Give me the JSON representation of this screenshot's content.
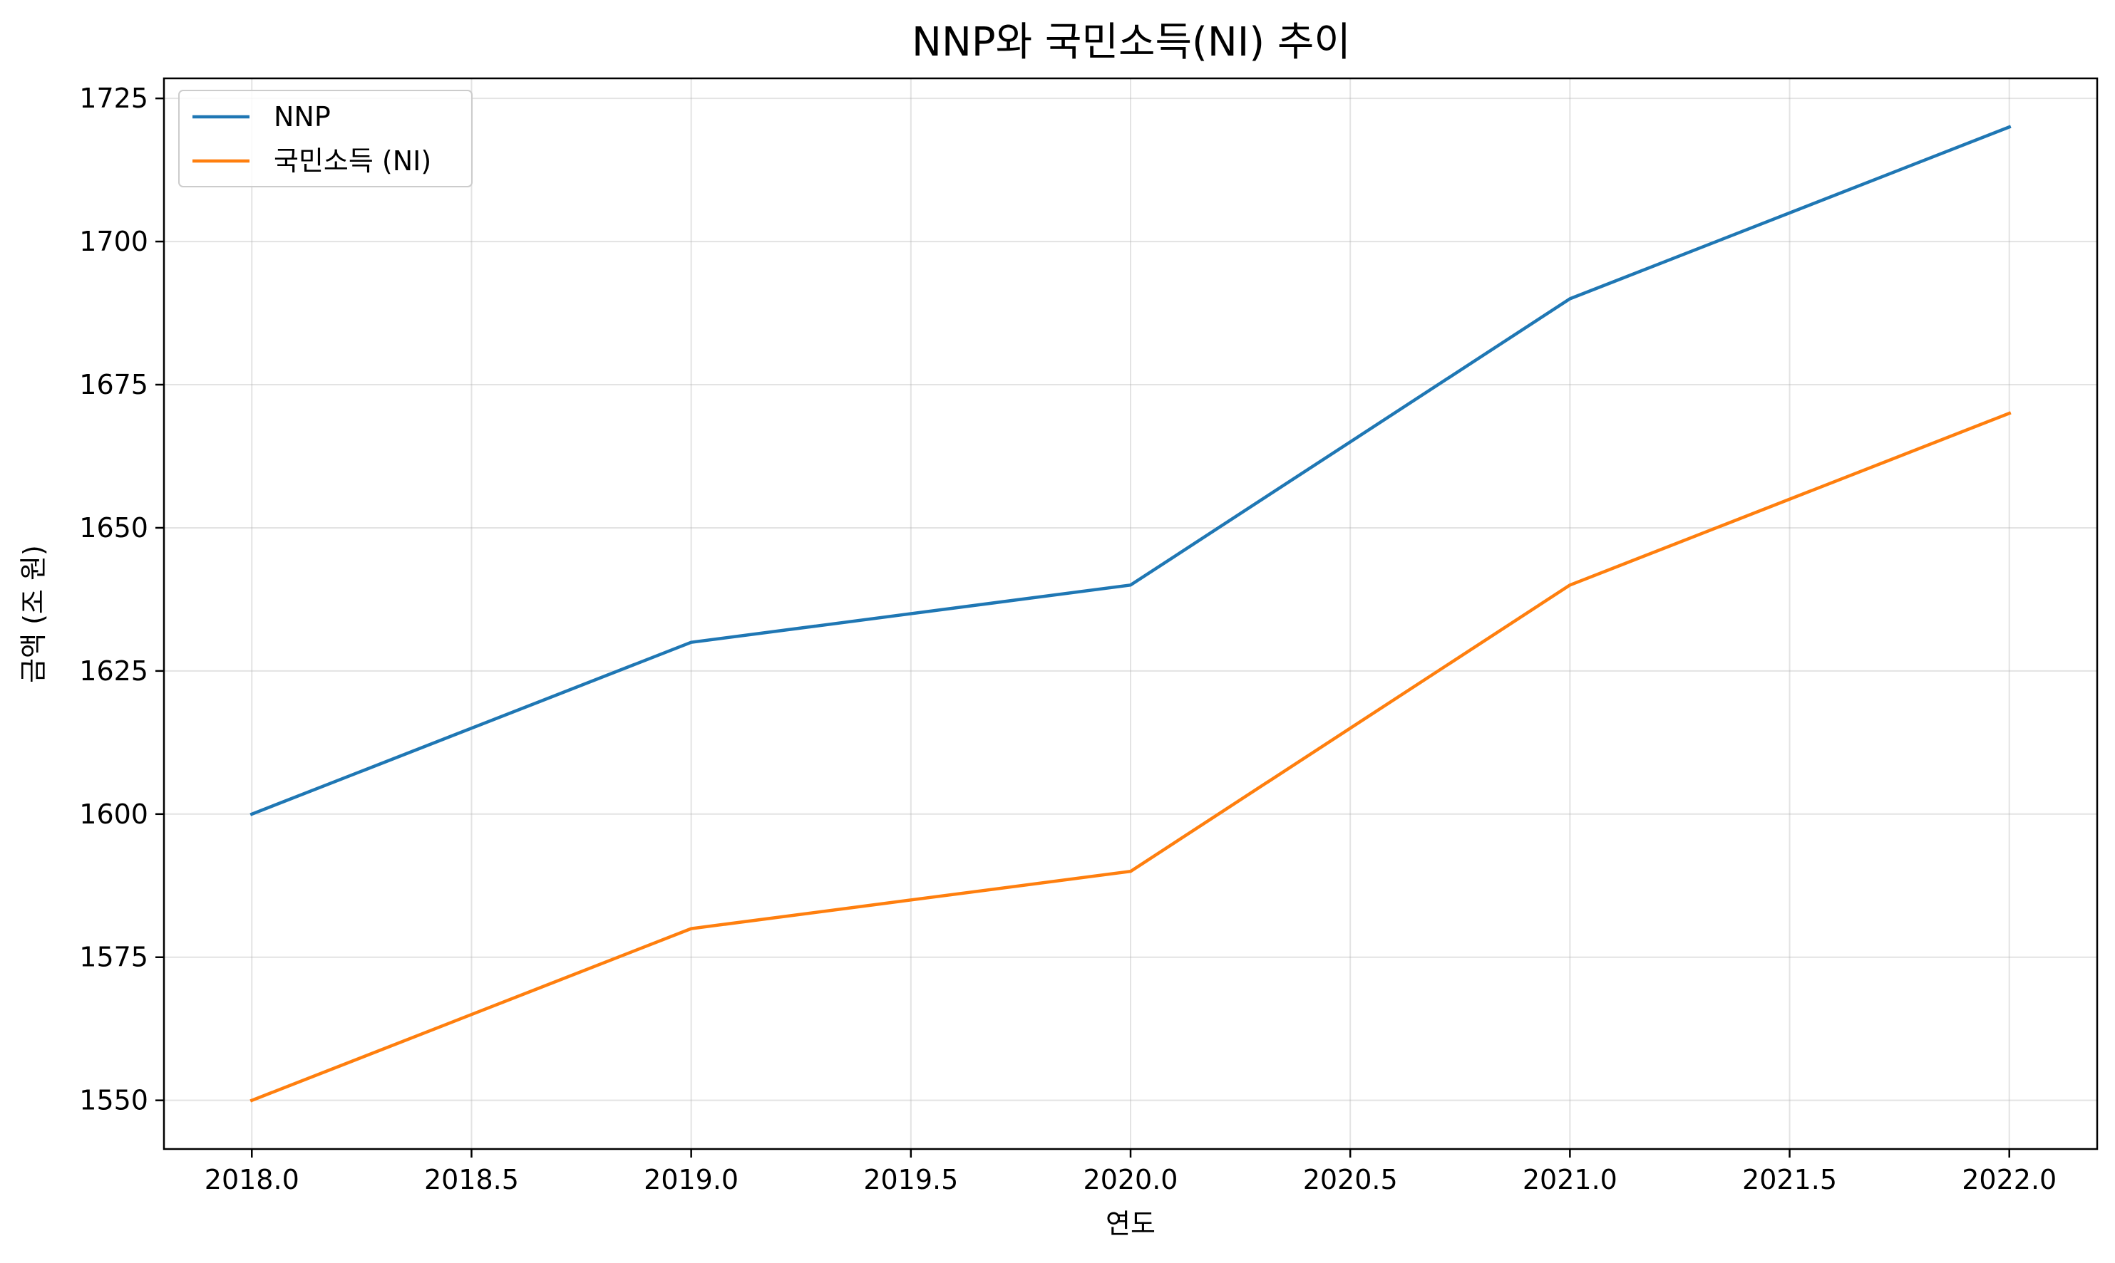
{
  "chart_data": {
    "type": "line",
    "title": "NNP와 국민소득(NI) 추이",
    "xlabel": "연도",
    "ylabel": "금액 (조 원)",
    "x": [
      2018,
      2019,
      2020,
      2021,
      2022
    ],
    "xlim": [
      2017.8,
      2022.2
    ],
    "ylim": [
      1541.5,
      1728.5
    ],
    "xticks": [
      2018.0,
      2018.5,
      2019.0,
      2019.5,
      2020.0,
      2020.5,
      2021.0,
      2021.5,
      2022.0
    ],
    "xtick_labels": [
      "2018.0",
      "2018.5",
      "2019.0",
      "2019.5",
      "2020.0",
      "2020.5",
      "2021.0",
      "2021.5",
      "2022.0"
    ],
    "yticks": [
      1550,
      1575,
      1600,
      1625,
      1650,
      1675,
      1700,
      1725
    ],
    "ytick_labels": [
      "1550",
      "1575",
      "1600",
      "1625",
      "1650",
      "1675",
      "1700",
      "1725"
    ],
    "grid": true,
    "legend_position": "top-left",
    "series": [
      {
        "name": "NNP",
        "color": "#1f77b4",
        "values": [
          1600,
          1630,
          1640,
          1690,
          1720
        ]
      },
      {
        "name": "국민소득 (NI)",
        "color": "#ff7f0e",
        "values": [
          1550,
          1580,
          1590,
          1640,
          1670
        ]
      }
    ]
  }
}
